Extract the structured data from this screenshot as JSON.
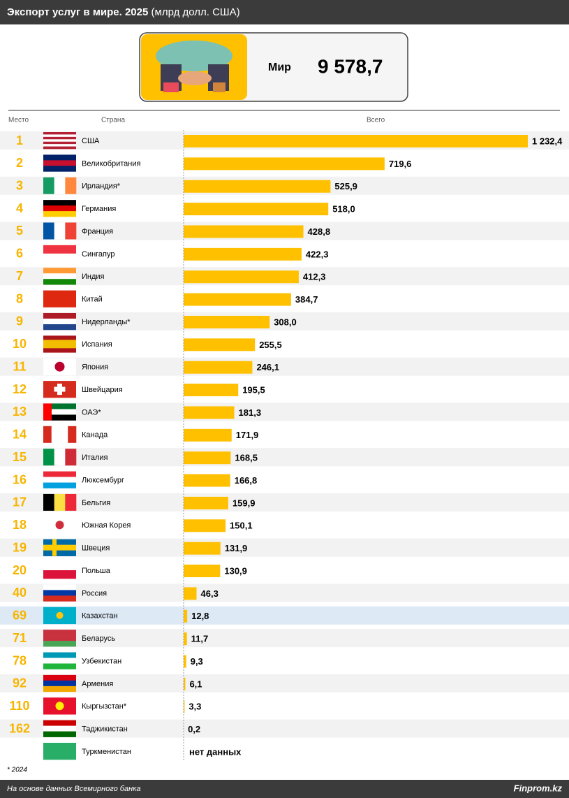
{
  "chart_data": {
    "type": "bar",
    "orientation": "horizontal",
    "title": "Экспорт услуг в мире. 2025",
    "subtitle": "(млрд долл. США)",
    "total_label": "Мир",
    "total": "9 578,7",
    "column_headers": [
      "Место",
      "Страна",
      "Всего"
    ],
    "ranks": [
      1,
      2,
      3,
      4,
      5,
      6,
      7,
      8,
      9,
      10,
      11,
      12,
      13,
      14,
      15,
      16,
      17,
      18,
      19,
      20,
      40,
      69,
      71,
      78,
      92,
      110,
      162,
      null
    ],
    "categories": [
      "США",
      "Великобритания",
      "Ирландия*",
      "Германия",
      "Франция",
      "Сингапур",
      "Индия",
      "Китай",
      "Нидерланды*",
      "Испания",
      "Япония",
      "Швейцария",
      "ОАЭ*",
      "Канада",
      "Италия",
      "Люксембург",
      "Бельгия",
      "Южная Корея",
      "Швеция",
      "Польша",
      "Россия",
      "Казахстан",
      "Беларусь",
      "Узбекистан",
      "Армения",
      "Кыргызстан*",
      "Таджикистан",
      "Туркменистан"
    ],
    "values": [
      1232.4,
      719.6,
      525.9,
      518.0,
      428.8,
      422.3,
      412.3,
      384.7,
      308.0,
      255.5,
      246.1,
      195.5,
      181.3,
      171.9,
      168.5,
      166.8,
      159.9,
      150.1,
      131.9,
      130.9,
      46.3,
      12.8,
      11.7,
      9.3,
      6.1,
      3.3,
      0.2,
      null
    ],
    "value_labels": [
      "1 232,4",
      "719,6",
      "525,9",
      "518,0",
      "428,8",
      "422,3",
      "412,3",
      "384,7",
      "308,0",
      "255,5",
      "246,1",
      "195,5",
      "181,3",
      "171,9",
      "168,5",
      "166,8",
      "159,9",
      "150,1",
      "131,9",
      "130,9",
      "46,3",
      "12,8",
      "11,7",
      "9,3",
      "6,1",
      "3,3",
      "0,2",
      "нет данных"
    ],
    "color": "#ffc000",
    "rank_color": "#f7b500",
    "highlight": "Казахстан",
    "highlight_color": "#dde9f5",
    "footnote": "* 2024",
    "source": "На основе данных Всемирного банка",
    "brand": "Finprom.kz"
  }
}
